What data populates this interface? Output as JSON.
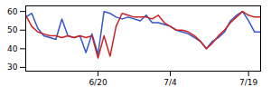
{
  "chart_data": {
    "type": "line",
    "x": [
      0,
      1,
      2,
      3,
      4,
      5,
      6,
      7,
      8,
      9,
      10,
      11,
      12,
      13,
      14,
      15,
      16,
      17,
      18,
      19,
      20,
      21,
      22,
      23,
      24,
      25,
      26,
      27,
      28,
      29,
      30,
      31,
      32,
      33,
      34,
      35,
      36,
      37,
      38,
      39
    ],
    "series": [
      {
        "color": "#3355cc",
        "values": [
          57,
          59,
          51,
          47,
          46,
          45,
          56,
          47,
          46,
          47,
          38,
          48,
          37,
          60,
          59,
          57,
          56,
          57,
          56,
          55,
          58,
          54,
          54,
          53,
          52,
          50,
          49,
          48,
          46,
          44,
          40,
          44,
          46,
          49,
          55,
          58,
          60,
          55,
          49,
          49
        ]
      },
      {
        "color": "#cc2222",
        "values": [
          58,
          52,
          49,
          48,
          47,
          47,
          46,
          47,
          46,
          47,
          46,
          47,
          35,
          47,
          36,
          52,
          59,
          58,
          57,
          57,
          57,
          56,
          58,
          54,
          52,
          50,
          50,
          49,
          47,
          44,
          40,
          43,
          47,
          50,
          54,
          57,
          60,
          58,
          57,
          57
        ]
      }
    ],
    "xlim": [
      0,
      39
    ],
    "xticks": [
      {
        "value": 12,
        "label": "6/20"
      },
      {
        "value": 24,
        "label": "7/4"
      },
      {
        "value": 37,
        "label": "7/19"
      }
    ],
    "ylim": [
      28,
      63
    ],
    "yticks": [
      30,
      40,
      50,
      60
    ]
  }
}
